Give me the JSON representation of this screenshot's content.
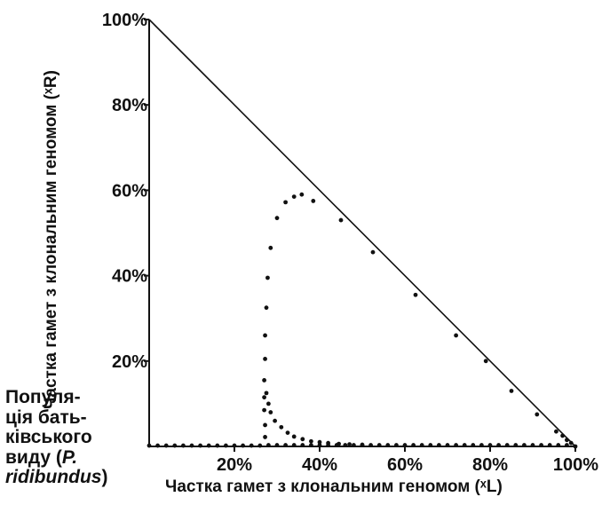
{
  "population_label": {
    "line1": "Популя-",
    "line2": "ція бать-",
    "line3": "ківського",
    "line4_pre": "виду (",
    "line4_italic": "P.",
    "line5_italic": "ridibundus",
    "line5_post": ")"
  },
  "chart_data": {
    "type": "scatter",
    "xlabel": "Частка гамет з клональним геномом (ˣL)",
    "ylabel": "Частка гамет з клональним геномом (ˣR)",
    "xlim": [
      0,
      100
    ],
    "ylim": [
      0,
      100
    ],
    "x_ticks": [
      "20%",
      "40%",
      "60%",
      "80%",
      "100%"
    ],
    "x_tick_values": [
      20,
      40,
      60,
      80,
      100
    ],
    "y_ticks": [
      "20%",
      "40%",
      "60%",
      "80%",
      "100%"
    ],
    "y_tick_values": [
      20,
      40,
      60,
      80,
      100
    ],
    "reference_line": {
      "from": [
        0,
        100
      ],
      "to": [
        100,
        0
      ]
    },
    "series": [
      {
        "values": [
          [
            0,
            0.2
          ],
          [
            2,
            0.2
          ],
          [
            4,
            0.2
          ],
          [
            6,
            0.2
          ],
          [
            8,
            0.2
          ],
          [
            10,
            0.2
          ],
          [
            12,
            0.2
          ],
          [
            14,
            0.2
          ],
          [
            16,
            0.2
          ],
          [
            18,
            0.2
          ],
          [
            20,
            0.2
          ],
          [
            22,
            0.2
          ],
          [
            24,
            0.2
          ],
          [
            26,
            0.2
          ],
          [
            27.2,
            2.2
          ],
          [
            27.2,
            5
          ],
          [
            27,
            8.5
          ],
          [
            27,
            11.5
          ],
          [
            27,
            15.5
          ],
          [
            27.2,
            20.5
          ],
          [
            27.2,
            26
          ],
          [
            27.5,
            32.5
          ],
          [
            27.8,
            39.5
          ],
          [
            28.5,
            46.5
          ],
          [
            30,
            53.5
          ],
          [
            32,
            57.2
          ],
          [
            34,
            58.5
          ],
          [
            35.8,
            59
          ],
          [
            38.5,
            57.5
          ],
          [
            45,
            53
          ],
          [
            52.5,
            45.5
          ],
          [
            62.5,
            35.5
          ],
          [
            72,
            26
          ],
          [
            79,
            20
          ],
          [
            85,
            13
          ],
          [
            91,
            7.5
          ],
          [
            95.5,
            3.5
          ],
          [
            97,
            2.5
          ],
          [
            98,
            1.5
          ],
          [
            99,
            0.8
          ],
          [
            100,
            0
          ],
          [
            28,
            0.3
          ],
          [
            30,
            0.3
          ],
          [
            32,
            0.3
          ],
          [
            34,
            0.3
          ],
          [
            36,
            0.3
          ],
          [
            38,
            0.3
          ],
          [
            40,
            0.3
          ],
          [
            42,
            0.3
          ],
          [
            44,
            0.3
          ],
          [
            46,
            0.3
          ],
          [
            48,
            0.3
          ],
          [
            50,
            0.3
          ],
          [
            52,
            0.3
          ],
          [
            54,
            0.3
          ],
          [
            56,
            0.3
          ],
          [
            58,
            0.3
          ],
          [
            60,
            0.3
          ],
          [
            62,
            0.3
          ],
          [
            64,
            0.3
          ],
          [
            66,
            0.3
          ],
          [
            68,
            0.3
          ],
          [
            70,
            0.3
          ],
          [
            72,
            0.3
          ],
          [
            74,
            0.3
          ],
          [
            76,
            0.3
          ],
          [
            78,
            0.3
          ],
          [
            80,
            0.3
          ],
          [
            82,
            0.3
          ],
          [
            84,
            0.3
          ],
          [
            86,
            0.3
          ],
          [
            88,
            0.3
          ],
          [
            90,
            0.3
          ],
          [
            92,
            0.3
          ],
          [
            94,
            0.3
          ],
          [
            96,
            0.3
          ],
          [
            98,
            0.3
          ],
          [
            27.5,
            12.5
          ],
          [
            28,
            10
          ],
          [
            28.5,
            8
          ],
          [
            29.5,
            6
          ],
          [
            31,
            4.5
          ],
          [
            32.5,
            3.2
          ],
          [
            34,
            2.3
          ],
          [
            36,
            1.7
          ],
          [
            38,
            1.2
          ],
          [
            40,
            1
          ],
          [
            42,
            0.8
          ],
          [
            44.5,
            0.6
          ],
          [
            47,
            0.5
          ],
          [
            50,
            0.4
          ]
        ]
      }
    ]
  }
}
